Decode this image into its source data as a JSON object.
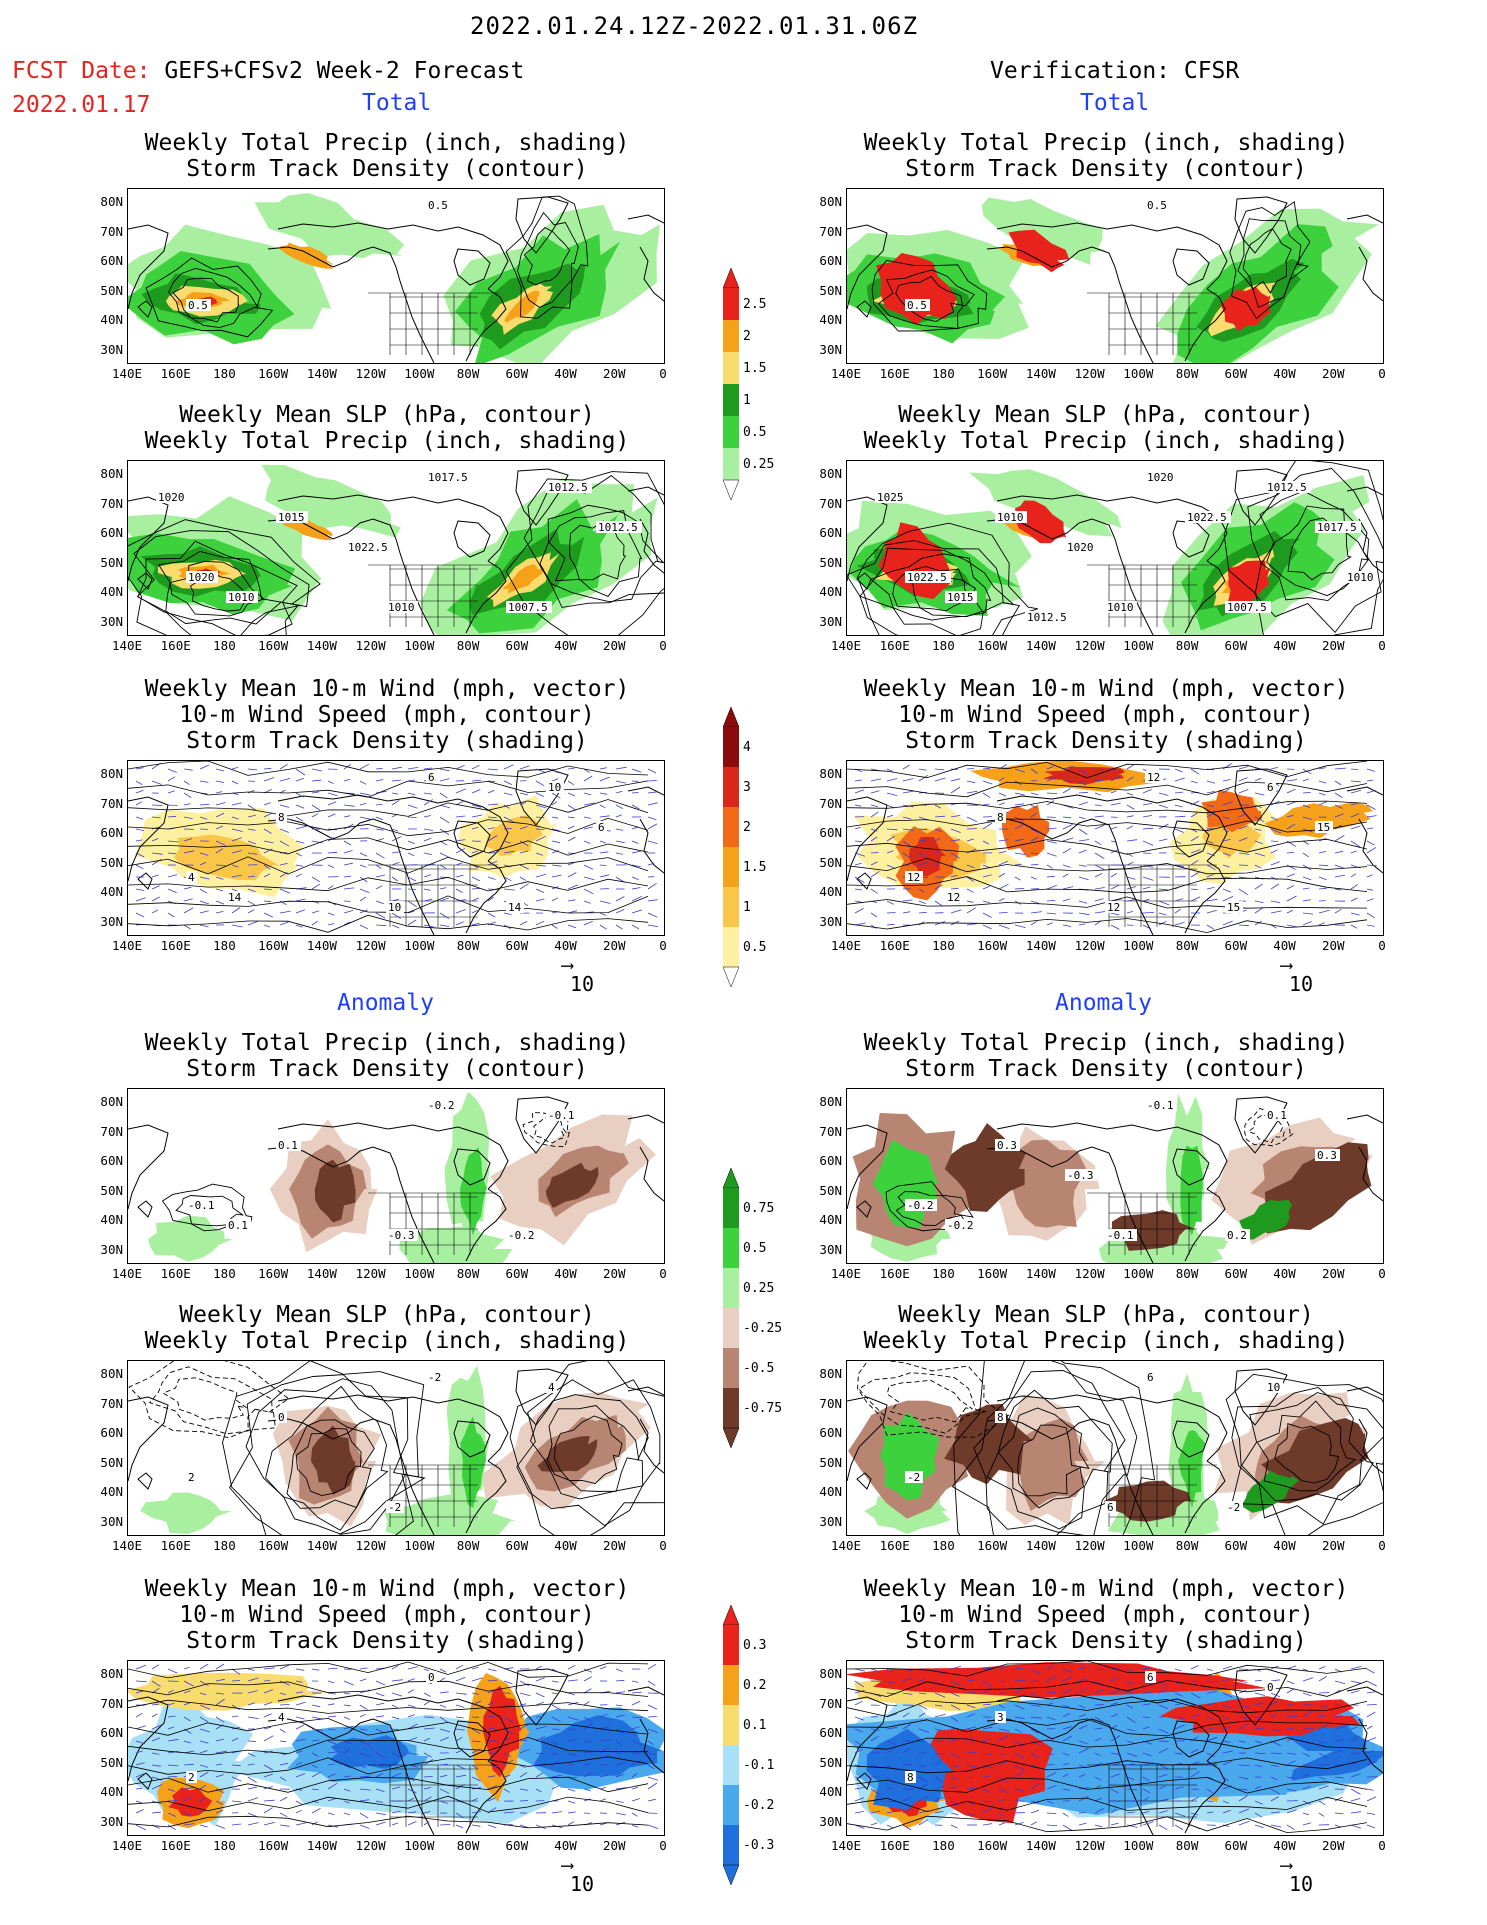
{
  "header": {
    "period": "2022.01.24.12Z-2022.01.31.06Z",
    "fcst_label": "FCST Date:",
    "fcst_model": "GEFS+CFSv2 Week-2 Forecast",
    "fcst_date": "2022.01.17",
    "verification": "Verification: CFSR",
    "total_label": "Total",
    "anomaly_label": "Anomaly"
  },
  "panel_titles": {
    "precip_storm": [
      "Weekly Total Precip (inch, shading)",
      "Storm Track Density (contour)"
    ],
    "slp_precip": [
      "Weekly Mean SLP (hPa, contour)",
      "Weekly Total Precip (inch, shading)"
    ],
    "wind_storm": [
      "Weekly Mean 10-m Wind (mph, vector)",
      "10-m Wind Speed (mph, contour)",
      "Storm Track Density (shading)"
    ]
  },
  "axes": {
    "lat_labels": [
      "80N",
      "70N",
      "60N",
      "50N",
      "40N",
      "30N"
    ],
    "lon_labels": [
      "140E",
      "160E",
      "180",
      "160W",
      "140W",
      "120W",
      "100W",
      "80W",
      "60W",
      "40W",
      "20W",
      "0"
    ]
  },
  "vector_ref": "10",
  "colorbars": {
    "total_precip": {
      "labels": [
        "2.5",
        "2",
        "1.5",
        "1",
        "0.5",
        "0.25"
      ],
      "colors": [
        "#e8231c",
        "#f5a21a",
        "#f9dc6e",
        "#1e9b1e",
        "#3dd23d",
        "#a8f0a0"
      ]
    },
    "total_storm": {
      "labels": [
        "4",
        "3",
        "2",
        "1.5",
        "1",
        "0.5"
      ],
      "colors": [
        "#8b0a0a",
        "#d9281a",
        "#f26a18",
        "#f5a21a",
        "#f9c64a",
        "#fdf0a0"
      ]
    },
    "anom_precip": {
      "labels": [
        "0.75",
        "0.5",
        "0.25",
        "-0.25",
        "-0.5",
        "-0.75"
      ],
      "colors": [
        "#1e9b1e",
        "#3dd23d",
        "#a8f0a0",
        "#e8cfc2",
        "#b88572",
        "#6e3a2a"
      ]
    },
    "anom_storm": {
      "labels": [
        "0.3",
        "0.2",
        "0.1",
        "-0.1",
        "-0.2",
        "-0.3"
      ],
      "colors": [
        "#e8231c",
        "#f5a21a",
        "#f9dc6e",
        "#a8e0f5",
        "#4aa8ec",
        "#1f6fdc"
      ]
    }
  },
  "contour_labels": {
    "fc_total_precip": [
      "0.5",
      "0.5"
    ],
    "vf_total_precip": [
      "0.5",
      "0.5"
    ],
    "fc_total_slp": [
      "1020",
      "1017.5",
      "1015",
      "1012.5",
      "1010",
      "1007.5",
      "1010",
      "1012.5",
      "1022.5",
      "1020"
    ],
    "vf_total_slp": [
      "1022.5",
      "1020",
      "1010",
      "1012.5",
      "1010",
      "1007.5",
      "1015",
      "1017.5",
      "1020",
      "1025",
      "1022.5",
      "1010",
      "1012.5"
    ],
    "fc_total_wind": [
      "4",
      "6",
      "8",
      "10",
      "10",
      "14",
      "14",
      "6"
    ],
    "vf_total_wind": [
      "12",
      "12",
      "8",
      "6",
      "12",
      "15",
      "12",
      "15"
    ],
    "fc_anom_precip": [
      "-0.1",
      "-0.2",
      "0.1",
      "-0.1",
      "-0.3",
      "-0.2",
      "0.1"
    ],
    "vf_anom_precip": [
      "-0.2",
      "-0.1",
      "0.3",
      "0.1",
      "-0.1",
      "0.2",
      "-0.2",
      "0.3",
      "-0.3"
    ],
    "fc_anom_slp": [
      "2",
      "-2",
      "0",
      "4",
      "-2"
    ],
    "vf_anom_slp": [
      "-2",
      "6",
      "8",
      "10",
      "6",
      "-2"
    ],
    "fc_anom_wind": [
      "2",
      "0",
      "4"
    ],
    "vf_anom_wind": [
      "8",
      "6",
      "3",
      "0"
    ]
  }
}
